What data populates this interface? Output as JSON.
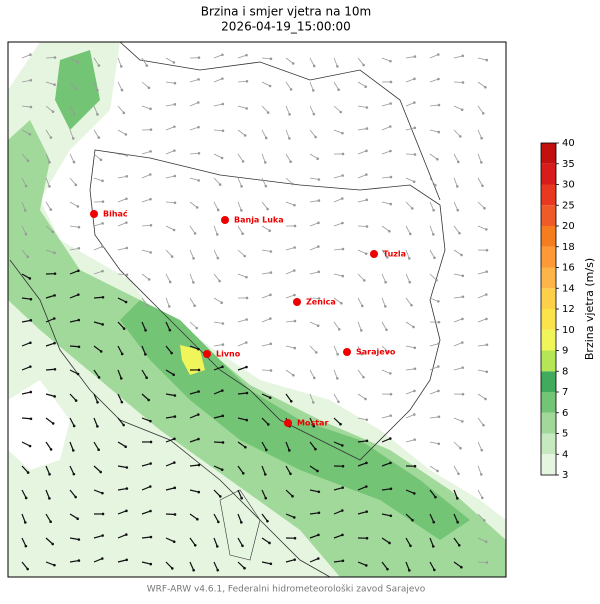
{
  "header": {
    "title": "Brzina i smjer vjetra na 10m",
    "subtitle": "2026-04-19_15:00:00"
  },
  "cities": [
    {
      "label": "Bihać"
    },
    {
      "label": "Banja Luka"
    },
    {
      "label": "Tuzla"
    },
    {
      "label": "Zenica"
    },
    {
      "label": "Sarajevo"
    },
    {
      "label": "Livno"
    },
    {
      "label": "Mostar"
    }
  ],
  "colorbar": {
    "label": "Brzina vjetra (m/s)",
    "ticks": [
      3,
      4,
      5,
      6,
      7,
      8,
      9,
      10,
      12,
      14,
      16,
      18,
      20,
      25,
      30,
      35,
      40
    ],
    "colors": [
      "#e5f5e0",
      "#c7e9c0",
      "#a1d99b",
      "#74c476",
      "#41ab5d",
      "#b5e655",
      "#f0f55a",
      "#fbe34b",
      "#fdd04a",
      "#fdb54a",
      "#fd9a35",
      "#f67d1d",
      "#f05a28",
      "#e8381f",
      "#d81c1c",
      "#c20f0f",
      "#a50f15"
    ]
  },
  "footer": "WRF-ARW v4.6.1, Federalni hidrometeorološki zavod Sarajevo"
}
